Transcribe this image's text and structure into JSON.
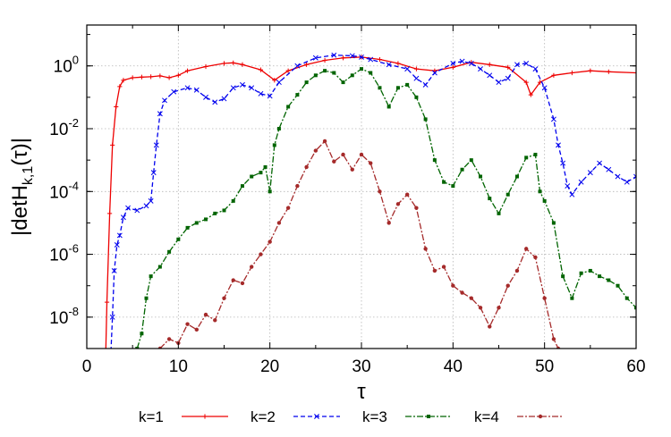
{
  "chart_data": {
    "type": "line",
    "title": "",
    "xlabel": "τ",
    "ylabel": "|detH_{k,1}(τ)|",
    "ylabel_parts": {
      "base": "|detH",
      "sub": "k,1",
      "rest": "(τ)|"
    },
    "xscale": "linear",
    "yscale": "log",
    "xlim": [
      0,
      60
    ],
    "ylim": [
      1e-09,
      20
    ],
    "x_ticks": [
      0,
      10,
      20,
      30,
      40,
      50,
      60
    ],
    "x_tick_labels": [
      "0",
      "10",
      "20",
      "30",
      "40",
      "50",
      "60"
    ],
    "y_ticks": [
      1e-08,
      1e-06,
      0.0001,
      0.01,
      1
    ],
    "y_tick_labels": [
      {
        "base": "10",
        "exp": "-8"
      },
      {
        "base": "10",
        "exp": "-6"
      },
      {
        "base": "10",
        "exp": "-4"
      },
      {
        "base": "10",
        "exp": "-2"
      },
      {
        "base": "10",
        "exp": "0"
      }
    ],
    "grid": true,
    "legend_position": "bottom",
    "series": [
      {
        "name": "k=1",
        "color": "#ee0000",
        "marker": "plus",
        "dash": "",
        "points": [
          [
            2.0,
            1e-10
          ],
          [
            2.2,
            3e-08
          ],
          [
            2.5,
            2e-05
          ],
          [
            2.8,
            0.003
          ],
          [
            3.2,
            0.05
          ],
          [
            3.6,
            0.22
          ],
          [
            4.0,
            0.35
          ],
          [
            5.0,
            0.42
          ],
          [
            6.0,
            0.44
          ],
          [
            7.0,
            0.45
          ],
          [
            8.0,
            0.48
          ],
          [
            9.0,
            0.42
          ],
          [
            10.0,
            0.5
          ],
          [
            11.0,
            0.7
          ],
          [
            13.0,
            0.95
          ],
          [
            15.0,
            1.2
          ],
          [
            16.0,
            1.25
          ],
          [
            17.0,
            1.1
          ],
          [
            19.0,
            0.75
          ],
          [
            20.5,
            0.35
          ],
          [
            22.0,
            0.7
          ],
          [
            24.0,
            1.1
          ],
          [
            26.0,
            1.5
          ],
          [
            28.0,
            1.8
          ],
          [
            30.0,
            1.9
          ],
          [
            32.0,
            1.6
          ],
          [
            34.0,
            1.2
          ],
          [
            36.0,
            0.8
          ],
          [
            38.0,
            0.7
          ],
          [
            40.0,
            0.9
          ],
          [
            42.0,
            1.3
          ],
          [
            44.0,
            1.1
          ],
          [
            46.0,
            0.9
          ],
          [
            48.0,
            0.3
          ],
          [
            48.5,
            0.12
          ],
          [
            49.5,
            0.3
          ],
          [
            51.0,
            0.5
          ],
          [
            53.0,
            0.6
          ],
          [
            55.0,
            0.7
          ],
          [
            57.0,
            0.65
          ],
          [
            60.0,
            0.6
          ]
        ]
      },
      {
        "name": "k=2",
        "color": "#0000ee",
        "marker": "cross",
        "dash": "5 3",
        "points": [
          [
            2.5,
            1e-10
          ],
          [
            2.8,
            1e-08
          ],
          [
            3.0,
            3e-07
          ],
          [
            3.3,
            2e-06
          ],
          [
            3.6,
            4e-06
          ],
          [
            4.0,
            1.5e-05
          ],
          [
            4.5,
            3e-05
          ],
          [
            5.5,
            2.5e-05
          ],
          [
            6.5,
            3.5e-05
          ],
          [
            7.0,
            5e-05
          ],
          [
            7.3,
            0.0004
          ],
          [
            7.6,
            0.003
          ],
          [
            8.0,
            0.03
          ],
          [
            8.5,
            0.08
          ],
          [
            9.5,
            0.15
          ],
          [
            11.0,
            0.2
          ],
          [
            12.0,
            0.17
          ],
          [
            13.0,
            0.1
          ],
          [
            14.0,
            0.07
          ],
          [
            15.0,
            0.09
          ],
          [
            16.0,
            0.2
          ],
          [
            17.0,
            0.25
          ],
          [
            18.0,
            0.2
          ],
          [
            19.0,
            0.13
          ],
          [
            20.0,
            0.11
          ],
          [
            21.0,
            0.3
          ],
          [
            23.0,
            1.0
          ],
          [
            25.0,
            1.8
          ],
          [
            27.0,
            2.2
          ],
          [
            29.0,
            2.1
          ],
          [
            30.0,
            1.9
          ],
          [
            31.0,
            1.6
          ],
          [
            33.0,
            1.1
          ],
          [
            35.0,
            0.8
          ],
          [
            36.0,
            0.4
          ],
          [
            37.0,
            0.25
          ],
          [
            38.0,
            0.6
          ],
          [
            40.0,
            1.2
          ],
          [
            41.0,
            1.4
          ],
          [
            42.0,
            1.2
          ],
          [
            43.0,
            0.8
          ],
          [
            44.0,
            0.5
          ],
          [
            45.0,
            0.3
          ],
          [
            46.0,
            0.4
          ],
          [
            47.0,
            1.1
          ],
          [
            48.0,
            1.2
          ],
          [
            49.0,
            0.8
          ],
          [
            50.0,
            0.2
          ],
          [
            51.0,
            0.02
          ],
          [
            51.5,
            0.003
          ],
          [
            52.0,
            0.0008
          ],
          [
            52.5,
            0.00015
          ],
          [
            53.0,
            8e-05
          ],
          [
            54.0,
            0.0002
          ],
          [
            55.0,
            0.0004
          ],
          [
            56.0,
            0.0008
          ],
          [
            57.0,
            0.0005
          ],
          [
            58.0,
            0.0003
          ],
          [
            59.0,
            0.0002
          ],
          [
            60.0,
            0.0003
          ]
        ]
      },
      {
        "name": "k=3",
        "color": "#006400",
        "marker": "square",
        "dash": "7 2 2 2",
        "points": [
          [
            5.5,
            1e-09
          ],
          [
            6.0,
            3e-09
          ],
          [
            6.5,
            4e-08
          ],
          [
            7.0,
            2e-07
          ],
          [
            8.0,
            4e-07
          ],
          [
            9.0,
            1.2e-06
          ],
          [
            10.0,
            3e-06
          ],
          [
            11.0,
            7e-06
          ],
          [
            12.0,
            1e-05
          ],
          [
            13.0,
            1.3e-05
          ],
          [
            14.0,
            2e-05
          ],
          [
            15.0,
            2.5e-05
          ],
          [
            16.0,
            5e-05
          ],
          [
            17.0,
            0.00015
          ],
          [
            18.0,
            0.0003
          ],
          [
            19.0,
            0.0004
          ],
          [
            19.5,
            0.0006
          ],
          [
            20.0,
            0.0001
          ],
          [
            20.5,
            0.003
          ],
          [
            21.0,
            0.01
          ],
          [
            22.0,
            0.05
          ],
          [
            23.0,
            0.12
          ],
          [
            24.0,
            0.3
          ],
          [
            25.0,
            0.5
          ],
          [
            26.0,
            0.7
          ],
          [
            27.0,
            0.6
          ],
          [
            28.0,
            0.3
          ],
          [
            29.0,
            0.5
          ],
          [
            30.0,
            0.8
          ],
          [
            31.0,
            0.6
          ],
          [
            32.0,
            0.2
          ],
          [
            33.0,
            0.05
          ],
          [
            34.0,
            0.2
          ],
          [
            35.0,
            0.25
          ],
          [
            36.0,
            0.1
          ],
          [
            37.0,
            0.02
          ],
          [
            38.0,
            0.001
          ],
          [
            39.0,
            0.0002
          ],
          [
            40.0,
            0.00015
          ],
          [
            41.0,
            0.0005
          ],
          [
            42.0,
            0.001
          ],
          [
            43.0,
            0.0003
          ],
          [
            44.0,
            6e-05
          ],
          [
            45.0,
            2e-05
          ],
          [
            46.0,
            8e-05
          ],
          [
            47.0,
            0.0003
          ],
          [
            48.0,
            0.0012
          ],
          [
            49.0,
            0.0015
          ],
          [
            49.5,
            0.0001
          ],
          [
            50.0,
            5e-05
          ],
          [
            51.0,
            1e-05
          ],
          [
            52.0,
            2e-07
          ],
          [
            53.0,
            4e-08
          ],
          [
            54.0,
            2.5e-07
          ],
          [
            55.0,
            3e-07
          ],
          [
            56.0,
            2e-07
          ],
          [
            57.0,
            1.5e-07
          ],
          [
            58.0,
            1e-07
          ],
          [
            59.0,
            4e-08
          ],
          [
            60.0,
            2e-08
          ]
        ]
      },
      {
        "name": "k=4",
        "color": "#a52a2a",
        "marker": "circle",
        "dash": "7 2 2 2",
        "points": [
          [
            8.0,
            1e-09
          ],
          [
            9.0,
            2e-09
          ],
          [
            10.0,
            1.5e-09
          ],
          [
            11.0,
            6e-09
          ],
          [
            12.0,
            4e-09
          ],
          [
            13.0,
            1.2e-08
          ],
          [
            14.0,
            8e-09
          ],
          [
            15.0,
            4e-08
          ],
          [
            16.0,
            1.5e-07
          ],
          [
            17.0,
            1.2e-07
          ],
          [
            18.0,
            4e-07
          ],
          [
            19.0,
            1e-06
          ],
          [
            20.0,
            2.5e-06
          ],
          [
            21.0,
            1e-05
          ],
          [
            22.0,
            3e-05
          ],
          [
            23.0,
            0.00015
          ],
          [
            24.0,
            0.0006
          ],
          [
            25.0,
            0.002
          ],
          [
            26.0,
            0.004
          ],
          [
            27.0,
            0.0009
          ],
          [
            28.0,
            0.0015
          ],
          [
            29.0,
            0.0005
          ],
          [
            30.0,
            0.0015
          ],
          [
            31.0,
            0.0008
          ],
          [
            32.0,
            0.0001
          ],
          [
            33.0,
            1e-05
          ],
          [
            34.0,
            4e-05
          ],
          [
            35.0,
            8e-05
          ],
          [
            36.0,
            3e-05
          ],
          [
            37.0,
            1.5e-06
          ],
          [
            38.0,
            3e-07
          ],
          [
            39.0,
            4e-07
          ],
          [
            40.0,
            1e-07
          ],
          [
            41.0,
            6e-08
          ],
          [
            42.0,
            4e-08
          ],
          [
            43.0,
            2e-08
          ],
          [
            44.0,
            5e-09
          ],
          [
            45.0,
            2e-08
          ],
          [
            46.0,
            1e-07
          ],
          [
            47.0,
            3e-07
          ],
          [
            48.0,
            1.5e-06
          ],
          [
            49.0,
            8e-07
          ],
          [
            50.0,
            4e-08
          ],
          [
            51.0,
            2e-09
          ],
          [
            51.5,
            1e-09
          ]
        ]
      }
    ]
  }
}
